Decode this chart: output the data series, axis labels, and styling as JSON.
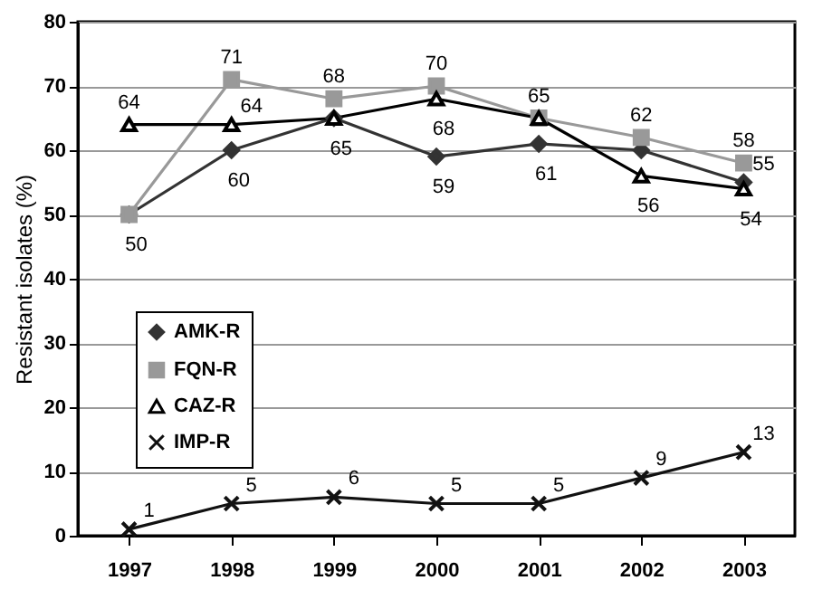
{
  "chart_data": {
    "type": "line",
    "ylabel": "Resistant isolates (%)",
    "categories": [
      "1997",
      "1998",
      "1999",
      "2000",
      "2001",
      "2002",
      "2003"
    ],
    "ylim": [
      0,
      80
    ],
    "yticks": [
      0,
      10,
      20,
      30,
      40,
      50,
      60,
      70,
      80
    ],
    "grid": "y",
    "legend": "left",
    "series": [
      {
        "name": "AMK-R",
        "color": "#333333",
        "marker": "diamond",
        "values": [
          50,
          60,
          65,
          59,
          61,
          60,
          55
        ],
        "value_labels": [
          "50",
          "60",
          "65",
          "59",
          "61",
          null,
          "55"
        ]
      },
      {
        "name": "FQN-R",
        "color": "#999999",
        "marker": "square",
        "values": [
          50,
          71,
          68,
          70,
          65,
          62,
          58
        ],
        "value_labels": [
          null,
          "71",
          "68",
          "70",
          null,
          "62",
          "58"
        ]
      },
      {
        "name": "CAZ-R",
        "color": "#000000",
        "marker": "triangle",
        "values": [
          64,
          64,
          65,
          68,
          65,
          56,
          54
        ],
        "value_labels": [
          "64",
          "64",
          null,
          "68",
          "65",
          "56",
          "54"
        ]
      },
      {
        "name": "IMP-R",
        "color": "#111111",
        "marker": "cross",
        "values": [
          1,
          5,
          6,
          5,
          5,
          9,
          13
        ],
        "value_labels": [
          "1",
          "5",
          "6",
          "5",
          "5",
          "9",
          "13"
        ]
      }
    ]
  }
}
